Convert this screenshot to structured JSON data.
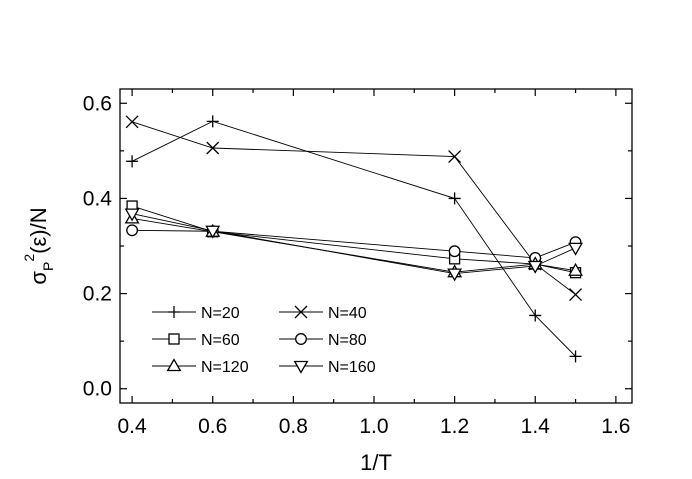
{
  "chart_data": {
    "type": "line",
    "xlabel": "1/T",
    "ylabel": {
      "base": "σ",
      "subscript": "P",
      "superscript": "2",
      "rest": "(ε)/N"
    },
    "xlim": [
      0.37,
      1.64
    ],
    "ylim": [
      -0.03,
      0.63
    ],
    "x_ticks": [
      0.4,
      0.6,
      0.8,
      1.0,
      1.2,
      1.4,
      1.6
    ],
    "x_tick_labels": [
      "0.4",
      "0.6",
      "0.8",
      "1.0",
      "1.2",
      "1.4",
      "1.6"
    ],
    "y_ticks": [
      0.0,
      0.2,
      0.4,
      0.6
    ],
    "y_tick_labels": [
      "0.0",
      "0.2",
      "0.4",
      "0.6"
    ],
    "grid": false,
    "legend_position": "bottom-left",
    "series": [
      {
        "name": "N=20",
        "marker": "plus",
        "x": [
          0.4,
          0.6,
          1.2,
          1.4,
          1.5
        ],
        "y": [
          0.478,
          0.562,
          0.4,
          0.154,
          0.068
        ]
      },
      {
        "name": "N=40",
        "marker": "cross",
        "x": [
          0.4,
          0.6,
          1.2,
          1.4,
          1.5
        ],
        "y": [
          0.561,
          0.506,
          0.488,
          0.262,
          0.198
        ]
      },
      {
        "name": "N=60",
        "marker": "square",
        "x": [
          0.4,
          0.6,
          1.2,
          1.4,
          1.5
        ],
        "y": [
          0.384,
          0.33,
          0.273,
          0.262,
          0.244
        ]
      },
      {
        "name": "N=80",
        "marker": "circle",
        "x": [
          0.4,
          0.6,
          1.2,
          1.4,
          1.5
        ],
        "y": [
          0.333,
          0.331,
          0.289,
          0.275,
          0.308
        ]
      },
      {
        "name": "N=120",
        "marker": "triangle-up",
        "x": [
          0.4,
          0.6,
          1.2,
          1.4,
          1.5
        ],
        "y": [
          0.358,
          0.33,
          0.245,
          0.262,
          0.248
        ]
      },
      {
        "name": "N=160",
        "marker": "triangle-down",
        "x": [
          0.4,
          0.6,
          1.2,
          1.4,
          1.5
        ],
        "y": [
          0.368,
          0.332,
          0.242,
          0.258,
          0.296
        ]
      }
    ]
  }
}
